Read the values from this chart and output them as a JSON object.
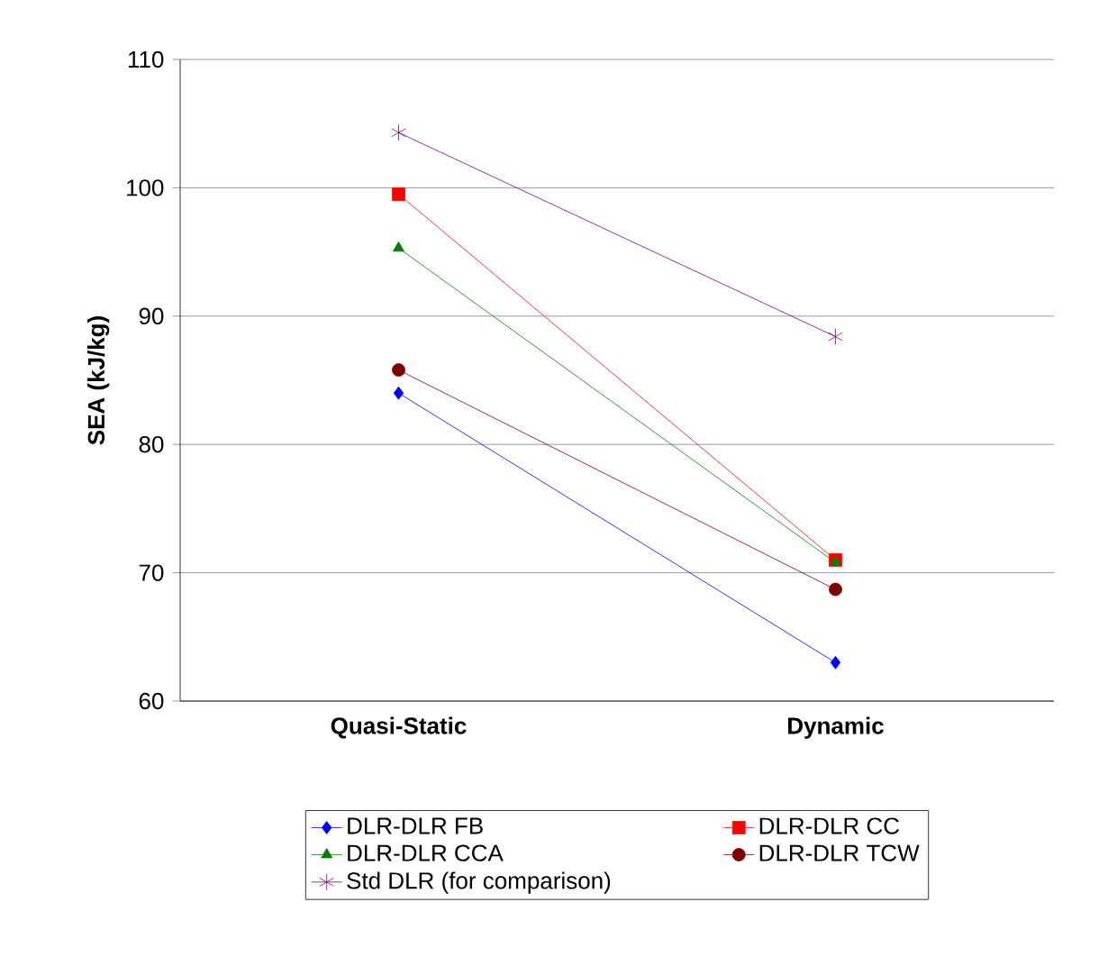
{
  "chart_data": {
    "type": "line",
    "ylabel": "SEA (kJ/kg)",
    "categories": [
      "Quasi-Static",
      "Dynamic"
    ],
    "series": [
      {
        "name": "DLR-DLR FB",
        "color": "#0000ff",
        "marker": "diamond",
        "values": [
          84,
          63
        ]
      },
      {
        "name": "DLR-DLR CC",
        "color": "#ff0000",
        "marker": "square",
        "values": [
          99.5,
          71
        ]
      },
      {
        "name": "DLR-DLR CCA",
        "color": "#008000",
        "marker": "triangle",
        "values": [
          95.3,
          70.8
        ]
      },
      {
        "name": "DLR-DLR TCW",
        "color": "#800000",
        "marker": "circle",
        "values": [
          85.8,
          68.7
        ]
      },
      {
        "name": "Std DLR (for comparison)",
        "color": "#800080",
        "marker": "cross",
        "values": [
          104.3,
          88.4
        ]
      }
    ],
    "ylim": [
      60,
      110
    ],
    "yticks": [
      60,
      70,
      80,
      90,
      100,
      110
    ],
    "grid": "y",
    "legend": "bottom"
  }
}
